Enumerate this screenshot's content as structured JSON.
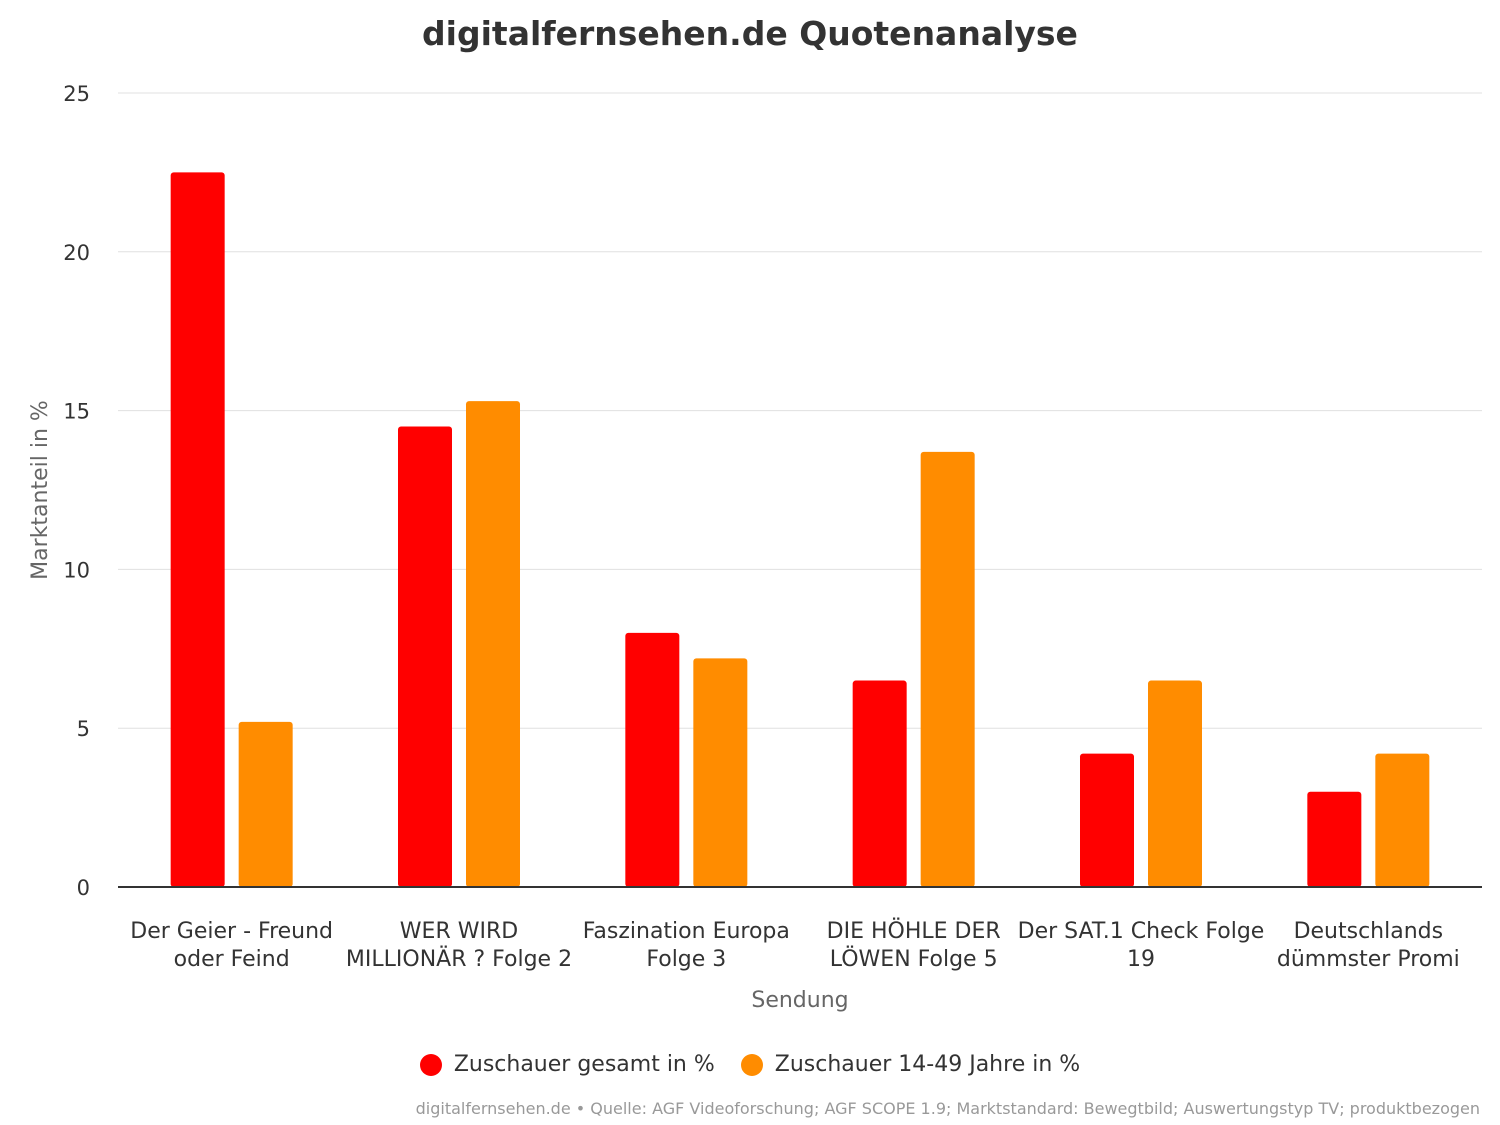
{
  "chart_data": {
    "type": "bar",
    "title": "digitalfernsehen.de Quotenanalyse",
    "xlabel": "Sendung",
    "ylabel": "Marktanteil in %",
    "ylim": [
      0,
      25
    ],
    "yticks": [
      0,
      5,
      10,
      15,
      20,
      25
    ],
    "grid": true,
    "legend_position": "bottom",
    "categories": [
      [
        "Der Geier - Freund",
        "oder Feind"
      ],
      [
        "WER WIRD",
        "MILLIONÄR ? Folge 2"
      ],
      [
        "Faszination Europa",
        "Folge 3"
      ],
      [
        "DIE HÖHLE DER",
        "LÖWEN Folge 5"
      ],
      [
        "Der SAT.1 Check Folge",
        "19"
      ],
      [
        "Deutschlands",
        "dümmster Promi"
      ]
    ],
    "series": [
      {
        "name": "Zuschauer gesamt in %",
        "color": "#ff0000",
        "values": [
          22.5,
          14.5,
          8.0,
          6.5,
          4.2,
          3.0
        ]
      },
      {
        "name": "Zuschauer 14-49 Jahre in %",
        "color": "#ff8c00",
        "values": [
          5.2,
          15.3,
          7.2,
          13.7,
          6.5,
          4.2
        ]
      }
    ],
    "credits": "digitalfernsehen.de • Quelle: AGF Videoforschung; AGF SCOPE 1.9; Marktstandard: Bewegtbild; Auswertungstyp TV; produktbezogen"
  }
}
